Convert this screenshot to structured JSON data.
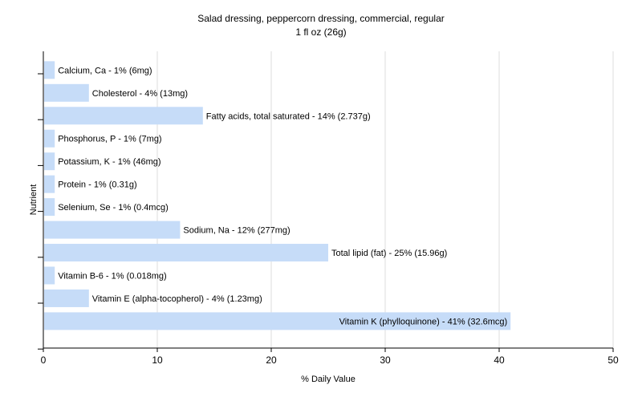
{
  "chart_data": {
    "type": "bar",
    "orientation": "horizontal",
    "title": "Salad dressing, peppercorn dressing, commercial, regular",
    "subtitle": "1 fl oz (26g)",
    "xlabel": "% Daily Value",
    "ylabel": "Nutrient",
    "xlim": [
      0,
      50
    ],
    "xticks": [
      0,
      10,
      20,
      30,
      40,
      50
    ],
    "grid": true,
    "bar_color": "#c6dcf8",
    "categories": [
      "Calcium, Ca",
      "Cholesterol",
      "Fatty acids, total saturated",
      "Phosphorus, P",
      "Potassium, K",
      "Protein",
      "Selenium, Se",
      "Sodium, Na",
      "Total lipid (fat)",
      "Vitamin B-6",
      "Vitamin E (alpha-tocopherol)",
      "Vitamin K (phylloquinone)"
    ],
    "values": [
      1,
      4,
      14,
      1,
      1,
      1,
      1,
      12,
      25,
      1,
      4,
      41
    ],
    "labels": [
      "Calcium, Ca - 1% (6mg)",
      "Cholesterol - 4% (13mg)",
      "Fatty acids, total saturated - 14% (2.737g)",
      "Phosphorus, P - 1% (7mg)",
      "Potassium, K - 1% (46mg)",
      "Protein - 1% (0.31g)",
      "Selenium, Se - 1% (0.4mcg)",
      "Sodium, Na - 12% (277mg)",
      "Total lipid (fat) - 25% (15.96g)",
      "Vitamin B-6 - 1% (0.018mg)",
      "Vitamin E (alpha-tocopherol) - 4% (1.23mg)",
      "Vitamin K (phylloquinone) - 41% (32.6mcg)"
    ]
  }
}
